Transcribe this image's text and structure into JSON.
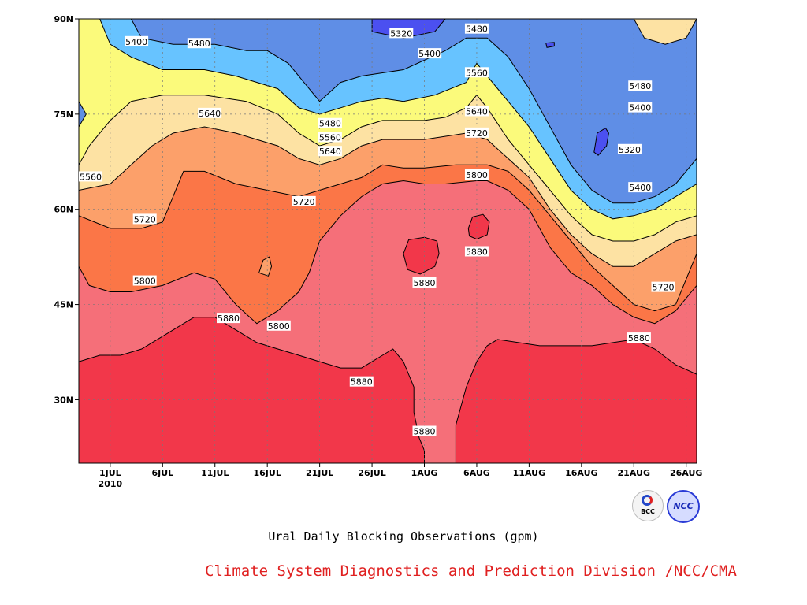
{
  "chart_data": {
    "type": "heatmap",
    "subtype": "filled-contour",
    "title": "",
    "caption": "Ural Daily Blocking Observations (gpm)",
    "credit": "Climate System Diagnostics and Prediction Division /NCC/CMA",
    "credit_color": "#e02020",
    "xlabel": "",
    "ylabel": "",
    "x_ticks": [
      "1JUL",
      "6JUL",
      "11JUL",
      "16JUL",
      "21JUL",
      "26JUL",
      "1AUG",
      "6AUG",
      "11AUG",
      "16AUG",
      "21AUG",
      "26AUG"
    ],
    "x_year_label": "2010",
    "x_range_days": [
      -3,
      56
    ],
    "y_ticks": [
      "30N",
      "45N",
      "60N",
      "75N",
      "90N"
    ],
    "y_tick_values": [
      30,
      45,
      60,
      75,
      90
    ],
    "ylim": [
      20,
      90
    ],
    "contour_levels": [
      5320,
      5400,
      5480,
      5560,
      5640,
      5720,
      5800,
      5880
    ],
    "band_colors": [
      "#4b50f0",
      "#5f8ee6",
      "#67c3ff",
      "#fbfa7b",
      "#fde2a3",
      "#fca06a",
      "#fb7647",
      "#f56f79",
      "#f2374a"
    ],
    "boundaries": [
      {
        "level": 5880,
        "points": [
          [
            -3,
            36
          ],
          [
            -1,
            37
          ],
          [
            1,
            37
          ],
          [
            3,
            38
          ],
          [
            5,
            40
          ],
          [
            8,
            43
          ],
          [
            10,
            43
          ],
          [
            12,
            41
          ],
          [
            14,
            39
          ],
          [
            16,
            38
          ],
          [
            18,
            37
          ],
          [
            20,
            36
          ],
          [
            22,
            35
          ],
          [
            24,
            35
          ],
          [
            26,
            37
          ],
          [
            27,
            38
          ],
          [
            28,
            36
          ],
          [
            29,
            32
          ],
          [
            29,
            28
          ],
          [
            29.5,
            24
          ],
          [
            30,
            22
          ],
          [
            30,
            20
          ],
          [
            33,
            20
          ],
          [
            33,
            26
          ],
          [
            34,
            32
          ],
          [
            35,
            36
          ],
          [
            36,
            38.5
          ],
          [
            37,
            39.5
          ],
          [
            39,
            39
          ],
          [
            41,
            38.5
          ],
          [
            46,
            38.5
          ],
          [
            48,
            39
          ],
          [
            50,
            39.5
          ],
          [
            52,
            38
          ],
          [
            54,
            35.5
          ],
          [
            56,
            34
          ]
        ]
      },
      {
        "level": 5800,
        "points": [
          [
            -3,
            51
          ],
          [
            -2,
            48
          ],
          [
            0,
            47
          ],
          [
            2,
            47
          ],
          [
            5,
            48
          ],
          [
            8,
            50
          ],
          [
            10,
            49
          ],
          [
            12,
            45
          ],
          [
            14,
            42
          ],
          [
            16,
            44
          ],
          [
            18,
            47
          ],
          [
            19,
            50
          ],
          [
            20,
            55
          ],
          [
            22,
            59
          ],
          [
            24,
            62
          ],
          [
            26,
            64
          ],
          [
            28,
            64.5
          ],
          [
            30,
            64
          ],
          [
            32,
            64
          ],
          [
            35,
            64.5
          ],
          [
            36,
            64.5
          ],
          [
            38,
            63
          ],
          [
            40,
            60
          ],
          [
            41,
            57
          ],
          [
            42,
            54
          ],
          [
            44,
            50
          ],
          [
            46,
            48
          ],
          [
            48,
            45
          ],
          [
            50,
            43
          ],
          [
            52,
            42
          ],
          [
            54,
            44
          ],
          [
            56,
            48
          ]
        ]
      },
      {
        "level": 5720,
        "points": [
          [
            -3,
            59
          ],
          [
            0,
            57
          ],
          [
            3,
            57
          ],
          [
            5,
            58
          ],
          [
            6,
            62
          ],
          [
            7,
            66
          ],
          [
            9,
            66
          ],
          [
            12,
            64
          ],
          [
            15,
            63
          ],
          [
            18,
            62
          ],
          [
            20,
            63
          ],
          [
            22,
            64
          ],
          [
            24,
            65
          ],
          [
            26,
            67
          ],
          [
            28,
            66.5
          ],
          [
            30,
            66.5
          ],
          [
            33,
            67
          ],
          [
            36,
            67
          ],
          [
            38,
            66
          ],
          [
            40,
            63
          ],
          [
            42,
            59
          ],
          [
            44,
            55
          ],
          [
            46,
            51
          ],
          [
            48,
            48
          ],
          [
            50,
            45
          ],
          [
            52,
            44
          ],
          [
            54,
            45
          ],
          [
            56,
            53
          ]
        ]
      },
      {
        "level": 5640,
        "points": [
          [
            -3,
            63
          ],
          [
            0,
            64
          ],
          [
            2,
            67
          ],
          [
            4,
            70
          ],
          [
            6,
            72
          ],
          [
            9,
            73
          ],
          [
            12,
            72
          ],
          [
            14,
            71
          ],
          [
            16,
            70
          ],
          [
            18,
            68
          ],
          [
            20,
            67
          ],
          [
            22,
            68
          ],
          [
            24,
            70
          ],
          [
            26,
            71
          ],
          [
            28,
            71
          ],
          [
            30,
            71
          ],
          [
            34,
            72
          ],
          [
            36,
            71
          ],
          [
            38,
            68
          ],
          [
            40,
            65
          ],
          [
            42,
            60
          ],
          [
            44,
            56
          ],
          [
            46,
            53
          ],
          [
            48,
            51
          ],
          [
            50,
            51
          ],
          [
            52,
            53
          ],
          [
            54,
            55
          ],
          [
            56,
            56
          ]
        ]
      },
      {
        "level": 5560,
        "points": [
          [
            -3,
            67
          ],
          [
            -2,
            70
          ],
          [
            -1,
            72
          ],
          [
            0,
            74
          ],
          [
            2,
            77
          ],
          [
            5,
            78
          ],
          [
            9,
            78
          ],
          [
            13,
            77
          ],
          [
            16,
            75
          ],
          [
            18,
            72
          ],
          [
            20,
            70
          ],
          [
            22,
            71
          ],
          [
            24,
            73
          ],
          [
            26,
            74
          ],
          [
            28,
            74
          ],
          [
            30,
            74
          ],
          [
            32,
            74.5
          ],
          [
            34,
            76
          ],
          [
            35,
            78
          ],
          [
            36,
            76
          ],
          [
            38,
            71
          ],
          [
            40,
            67
          ],
          [
            42,
            63
          ],
          [
            44,
            59
          ],
          [
            46,
            56
          ],
          [
            48,
            55
          ],
          [
            50,
            55
          ],
          [
            52,
            56
          ],
          [
            54,
            58
          ],
          [
            56,
            59
          ]
        ]
      },
      {
        "level": 5480,
        "points": [
          [
            -1,
            90
          ],
          [
            0,
            86
          ],
          [
            2,
            84
          ],
          [
            5,
            82
          ],
          [
            9,
            82
          ],
          [
            12,
            81
          ],
          [
            16,
            79
          ],
          [
            18,
            76
          ],
          [
            20,
            75
          ],
          [
            22,
            76
          ],
          [
            24,
            77
          ],
          [
            26,
            77.5
          ],
          [
            28,
            77
          ],
          [
            31,
            78
          ],
          [
            34,
            80
          ],
          [
            35,
            83
          ],
          [
            36,
            81
          ],
          [
            38,
            77
          ],
          [
            40,
            73
          ],
          [
            42,
            68
          ],
          [
            44,
            63
          ],
          [
            46,
            60
          ],
          [
            48,
            58.5
          ],
          [
            50,
            59
          ],
          [
            52,
            60
          ],
          [
            54,
            62
          ],
          [
            56,
            64
          ]
        ]
      },
      {
        "level": 5400,
        "points": [
          [
            2,
            90
          ],
          [
            3,
            87
          ],
          [
            6,
            86
          ],
          [
            10,
            86
          ],
          [
            13,
            85
          ],
          [
            15,
            85
          ],
          [
            17,
            83
          ],
          [
            19,
            79
          ],
          [
            20,
            77
          ],
          [
            22,
            80
          ],
          [
            24,
            81
          ],
          [
            26,
            81.5
          ],
          [
            28,
            82
          ],
          [
            32,
            85
          ],
          [
            34,
            87
          ],
          [
            36,
            87
          ],
          [
            38,
            84
          ],
          [
            40,
            79
          ],
          [
            42,
            73
          ],
          [
            44,
            67
          ],
          [
            46,
            63
          ],
          [
            48,
            61
          ],
          [
            50,
            61
          ],
          [
            52,
            62
          ],
          [
            54,
            64
          ],
          [
            56,
            68
          ]
        ]
      },
      {
        "level": 5320,
        "points": [
          [
            25,
            90
          ],
          [
            25,
            88
          ],
          [
            28,
            87
          ],
          [
            31,
            88
          ],
          [
            32,
            90
          ]
        ]
      }
    ],
    "islands": [
      {
        "level": 5400,
        "points": [
          [
            -3,
            77
          ],
          [
            -2.3,
            75
          ],
          [
            -3,
            73
          ]
        ],
        "closed": true
      },
      {
        "level": 5480,
        "points": [
          [
            50,
            90
          ],
          [
            51,
            87
          ],
          [
            53,
            86
          ],
          [
            55,
            87
          ],
          [
            56,
            90
          ]
        ],
        "closed": true
      },
      {
        "level": 5320,
        "points": [
          [
            41.6,
            86.2
          ],
          [
            42.4,
            86.3
          ],
          [
            42.4,
            85.7
          ],
          [
            41.7,
            85.5
          ]
        ],
        "closed": true
      },
      {
        "level": 5320,
        "points": [
          [
            46.2,
            69
          ],
          [
            46.5,
            72
          ],
          [
            47.3,
            72.8
          ],
          [
            47.6,
            72
          ],
          [
            47.4,
            70
          ],
          [
            46.6,
            68.5
          ]
        ],
        "closed": true
      },
      {
        "level": 5640,
        "points": [
          [
            14.2,
            50
          ],
          [
            14.6,
            52
          ],
          [
            15.2,
            52.5
          ],
          [
            15.4,
            51
          ],
          [
            15.1,
            49.5
          ]
        ],
        "closed": true
      },
      {
        "level": 5880,
        "points": [
          [
            28,
            53
          ],
          [
            28.5,
            55.2
          ],
          [
            30,
            55.6
          ],
          [
            31.2,
            55
          ],
          [
            31.4,
            53
          ],
          [
            31,
            51
          ],
          [
            29.6,
            49.8
          ],
          [
            28.4,
            50.5
          ]
        ],
        "closed": true
      },
      {
        "level": 5880,
        "points": [
          [
            34.2,
            57
          ],
          [
            34.6,
            58.8
          ],
          [
            35.6,
            59.2
          ],
          [
            36.2,
            58
          ],
          [
            36,
            56
          ],
          [
            35,
            55.3
          ],
          [
            34.3,
            55.8
          ]
        ],
        "closed": true
      }
    ],
    "contour_labels": [
      {
        "text": "5400",
        "x": 2.5,
        "y": 86.3
      },
      {
        "text": "5480",
        "x": 8.5,
        "y": 86
      },
      {
        "text": "5320",
        "x": 27.8,
        "y": 87.6
      },
      {
        "text": "5480",
        "x": 35,
        "y": 88.3
      },
      {
        "text": "5400",
        "x": 30.5,
        "y": 84.4
      },
      {
        "text": "5560",
        "x": 35,
        "y": 81.4
      },
      {
        "text": "5480",
        "x": 50.6,
        "y": 79.3
      },
      {
        "text": "5400",
        "x": 50.6,
        "y": 75.9
      },
      {
        "text": "5320",
        "x": 49.6,
        "y": 69.3
      },
      {
        "text": "5400",
        "x": 50.6,
        "y": 63.3
      },
      {
        "text": "5640",
        "x": 9.5,
        "y": 75
      },
      {
        "text": "5560",
        "x": -1.9,
        "y": 65
      },
      {
        "text": "5480",
        "x": 21,
        "y": 73.4
      },
      {
        "text": "5560",
        "x": 21,
        "y": 71.2
      },
      {
        "text": "5640",
        "x": 21,
        "y": 69
      },
      {
        "text": "5640",
        "x": 35,
        "y": 75.3
      },
      {
        "text": "5720",
        "x": 35,
        "y": 71.9
      },
      {
        "text": "5800",
        "x": 35,
        "y": 65.3
      },
      {
        "text": "5720",
        "x": 18.5,
        "y": 61.1
      },
      {
        "text": "5720",
        "x": 3.3,
        "y": 58.3
      },
      {
        "text": "5800",
        "x": 3.3,
        "y": 48.6
      },
      {
        "text": "5720",
        "x": 52.8,
        "y": 47.6
      },
      {
        "text": "5880",
        "x": 35,
        "y": 53.2
      },
      {
        "text": "5880",
        "x": 30,
        "y": 48.3
      },
      {
        "text": "5880",
        "x": 11.3,
        "y": 42.7
      },
      {
        "text": "5800",
        "x": 16.1,
        "y": 41.5
      },
      {
        "text": "5880",
        "x": 50.5,
        "y": 39.6
      },
      {
        "text": "5880",
        "x": 24,
        "y": 32.7
      },
      {
        "text": "5880",
        "x": 30,
        "y": 24.9
      }
    ]
  }
}
